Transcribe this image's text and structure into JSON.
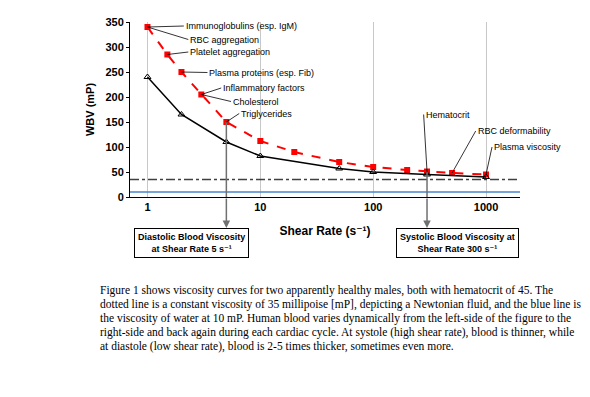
{
  "chart_data": {
    "type": "line",
    "log": "x",
    "grid": "x",
    "x_label": "Shear Rate (s⁻¹)",
    "y_label": "WBV (mP)",
    "xlim": [
      0.7,
      2000
    ],
    "xticks": [
      1,
      10,
      100,
      1000
    ],
    "ylim": [
      0,
      350
    ],
    "yticks": [
      0,
      50,
      100,
      150,
      200,
      250,
      300,
      350
    ],
    "series": [
      {
        "color": "#ff0000",
        "line_style": "dash",
        "marker": "square",
        "x": [
          1,
          1.5,
          2,
          3,
          5,
          10,
          20,
          50,
          100,
          200,
          300,
          500,
          1000
        ],
        "values": [
          340,
          285,
          250,
          205,
          150,
          112,
          90,
          70,
          60,
          54,
          51,
          48,
          45
        ]
      },
      {
        "color": "#000000",
        "line_style": "solid",
        "marker": "triangle-up-open",
        "x": [
          1,
          2,
          5,
          10,
          50,
          100,
          300,
          1000
        ],
        "values": [
          240,
          165,
          110,
          82,
          57,
          50,
          45,
          40
        ]
      },
      {
        "color": "#404040",
        "line_style": "dashdot",
        "marker": "none",
        "x": [
          0.7,
          2000
        ],
        "values": [
          35,
          35
        ]
      },
      {
        "color": "#4a86c8",
        "line_style": "solid",
        "marker": "none",
        "x": [
          0.7,
          2000
        ],
        "values": [
          10,
          10
        ]
      }
    ],
    "annotations": [
      {
        "text": "Immunoglobulins (esp. IgM)"
      },
      {
        "text": "RBC aggregation"
      },
      {
        "text": "Platelet aggregation"
      },
      {
        "text": "Plasma proteins (esp. Fib)"
      },
      {
        "text": "Inflammatory factors"
      },
      {
        "text": "Cholesterol"
      },
      {
        "text": "Triglycerides"
      },
      {
        "text": "Hematocrit"
      },
      {
        "text": "RBC deformability"
      },
      {
        "text": "Plasma viscosity"
      }
    ],
    "callouts": [
      {
        "text": "Diastolic Blood Viscosity\nat Shear Rate 5 s⁻¹",
        "x": 5
      },
      {
        "text": "Systolic Blood Viscosity at\nShear Rate 300 s⁻¹",
        "x": 300
      }
    ]
  },
  "caption": "Figure 1 shows viscosity curves for two apparently healthy males, both with hematocrit of 45. The dotted line is a constant viscosity of 35 millipoise [mP], depicting a Newtonian fluid, and the blue line is the viscosity of water at 10 mP. Human blood varies dynamically from the left-side of the figure to the right-side and back again during each cardiac cycle. At systole (high shear rate), blood is thinner, while at diastole (low shear rate), blood is 2-5 times thicker, sometimes even more."
}
